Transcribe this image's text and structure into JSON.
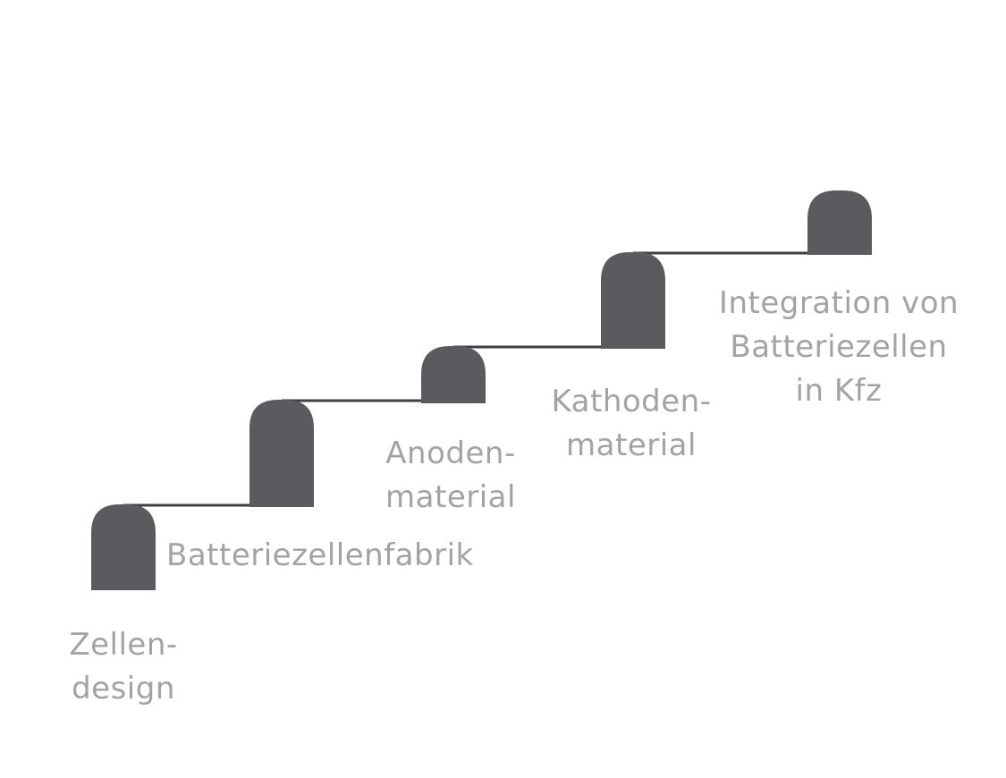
{
  "diagram": {
    "block_color": "#5b5b5f",
    "line_color": "#3f3f42",
    "label_color": "#a3a3a5",
    "steps": [
      {
        "id": "zellendesign",
        "label_lines": [
          "Zellen-",
          "design"
        ]
      },
      {
        "id": "batteriezellenfabrik",
        "label_lines": [
          "Batteriezellenfabrik"
        ]
      },
      {
        "id": "anodenmaterial",
        "label_lines": [
          "Anoden-",
          "material"
        ]
      },
      {
        "id": "kathodenmaterial",
        "label_lines": [
          "Kathoden-",
          "material"
        ]
      },
      {
        "id": "integration",
        "label_lines": [
          "Integration von",
          "Batteriezellen",
          "in Kfz"
        ]
      }
    ]
  }
}
